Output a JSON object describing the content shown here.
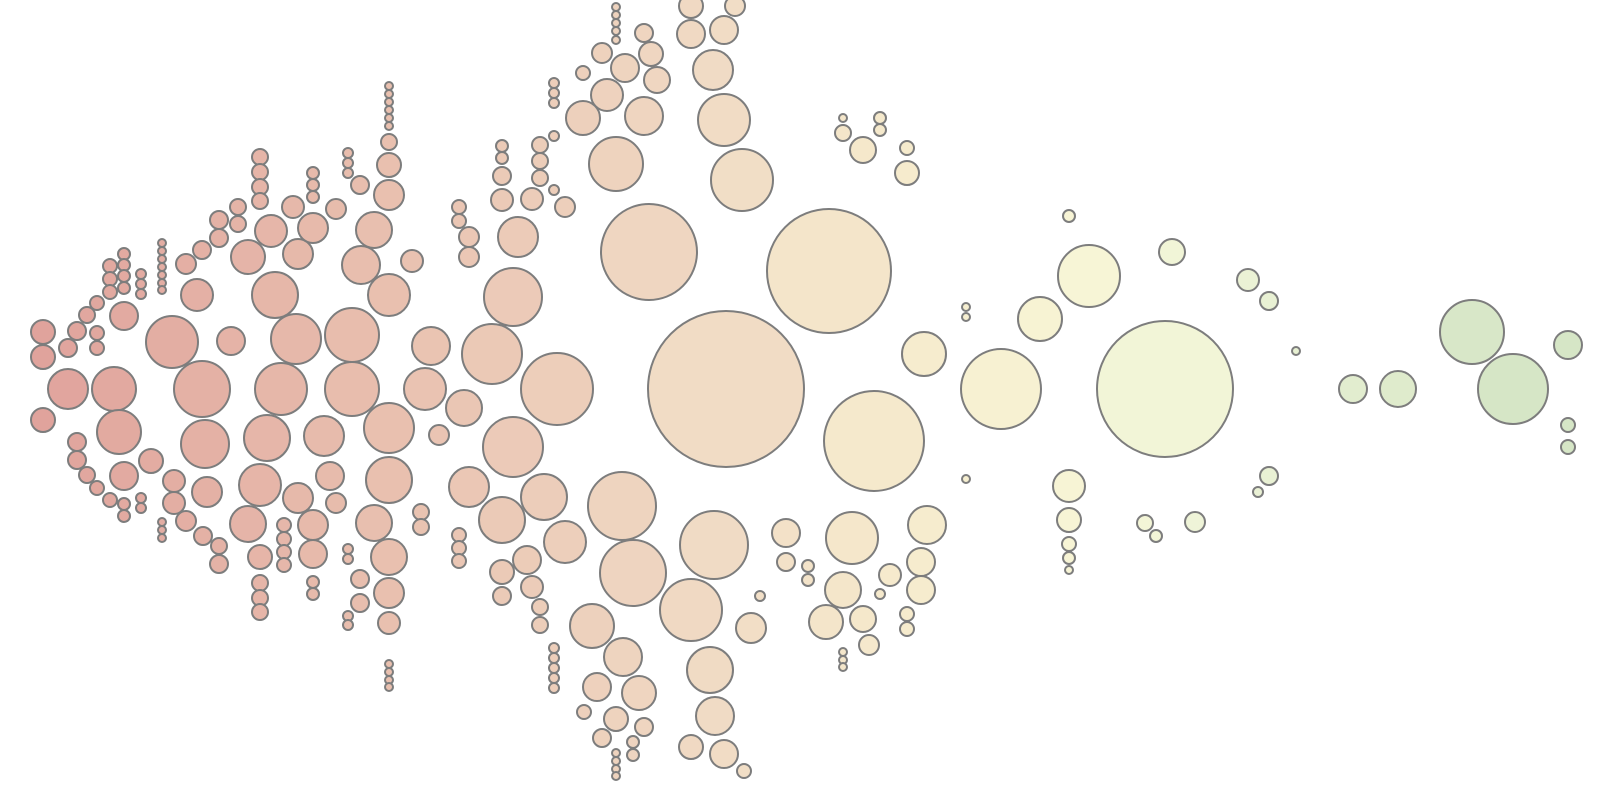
{
  "chart_data": {
    "type": "bubble-cluster",
    "color_scale": [
      "#e0a39c",
      "#e9c1b0",
      "#f0dac4",
      "#f6ebcd",
      "#f7f6d6",
      "#eff4d8",
      "#d6e6c6"
    ],
    "stroke_color": "#7d7d7d",
    "background": "#ffffff"
  }
}
